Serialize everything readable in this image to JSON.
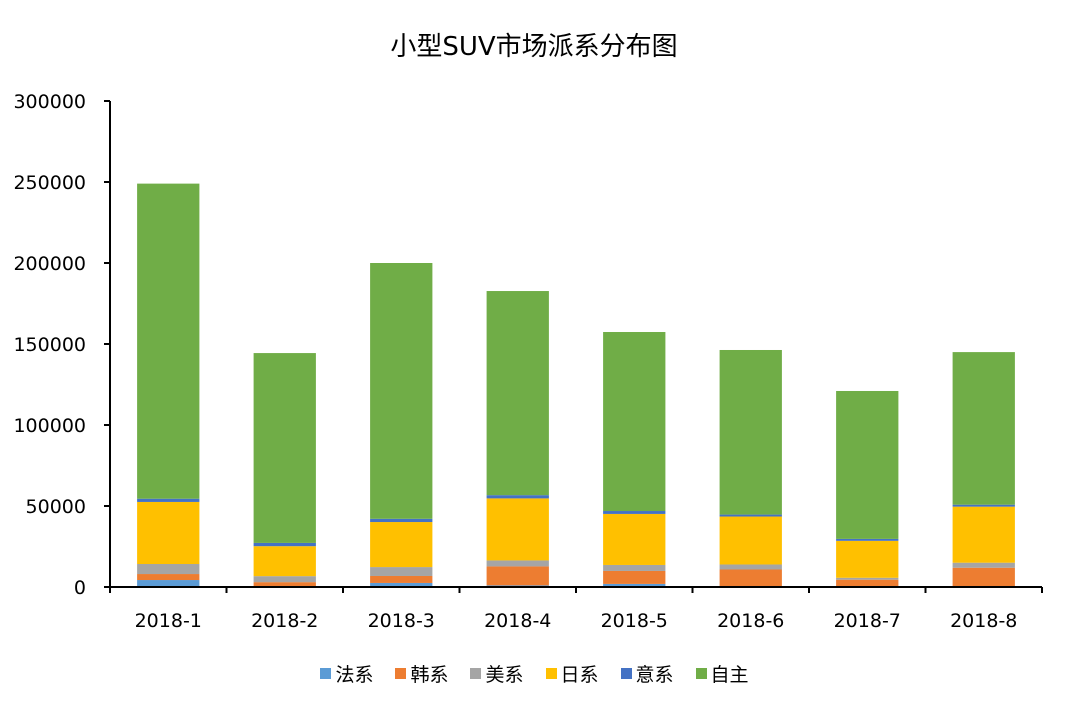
{
  "chart_data": {
    "type": "bar",
    "stacked": true,
    "title": "小型SUV市场派系分布图",
    "xlabel": "",
    "ylabel": "",
    "ylim": [
      0,
      300000
    ],
    "yticks": [
      0,
      50000,
      100000,
      150000,
      200000,
      250000,
      300000
    ],
    "ytick_labels": [
      "0",
      "50000",
      "100000",
      "150000",
      "200000",
      "250000",
      "300000"
    ],
    "categories": [
      "2018-1",
      "2018-2",
      "2018-3",
      "2018-4",
      "2018-5",
      "2018-6",
      "2018-7",
      "2018-8"
    ],
    "legend_position": "bottom",
    "grid": false,
    "series": [
      {
        "name": "法系",
        "color": "#5B9BD5",
        "values": [
          4300,
          500,
          2500,
          1000,
          1900,
          300,
          200,
          200
        ]
      },
      {
        "name": "韩系",
        "color": "#ED7D31",
        "values": [
          3700,
          2500,
          4300,
          11700,
          8000,
          10500,
          4300,
          11700
        ]
      },
      {
        "name": "美系",
        "color": "#A5A5A5",
        "values": [
          6200,
          3700,
          5500,
          3700,
          3700,
          3100,
          1200,
          3100
        ]
      },
      {
        "name": "日系",
        "color": "#FFC000",
        "values": [
          38300,
          18500,
          27800,
          38300,
          31500,
          29600,
          22800,
          34600
        ]
      },
      {
        "name": "意系",
        "color": "#4472C4",
        "values": [
          2000,
          2000,
          2000,
          2000,
          1800,
          1200,
          1200,
          1200
        ]
      },
      {
        "name": "自主",
        "color": "#70AD47",
        "values": [
          194500,
          117200,
          157900,
          126000,
          110500,
          101600,
          91300,
          94200
        ]
      }
    ]
  }
}
